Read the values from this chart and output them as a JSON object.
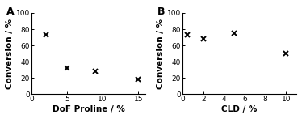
{
  "panel_A": {
    "x": [
      2,
      5,
      9,
      15
    ],
    "y": [
      73,
      32,
      28,
      18
    ],
    "xlabel": "DoF Proline / %",
    "ylabel": "Conversion / %",
    "label": "A",
    "xlim": [
      0,
      16
    ],
    "ylim": [
      0,
      100
    ],
    "xticks": [
      0,
      5,
      10,
      15
    ],
    "yticks": [
      0,
      20,
      40,
      60,
      80,
      100
    ]
  },
  "panel_B": {
    "x": [
      0.5,
      2,
      5,
      10
    ],
    "y": [
      73,
      68,
      75,
      50
    ],
    "xlabel": "CLD / %",
    "ylabel": "Conversion / %",
    "label": "B",
    "xlim": [
      0,
      11
    ],
    "ylim": [
      0,
      100
    ],
    "xticks": [
      0,
      2,
      4,
      6,
      8,
      10
    ],
    "yticks": [
      0,
      20,
      40,
      60,
      80,
      100
    ]
  },
  "marker": "x",
  "marker_size": 5,
  "marker_color": "black",
  "marker_linewidth": 1.4,
  "background_color": "#ffffff",
  "xlabel_fontsize": 7.5,
  "ylabel_fontsize": 7.5,
  "tick_fontsize": 6.5,
  "panel_label_fontsize": 9,
  "figsize": [
    3.74,
    1.47
  ],
  "dpi": 100
}
